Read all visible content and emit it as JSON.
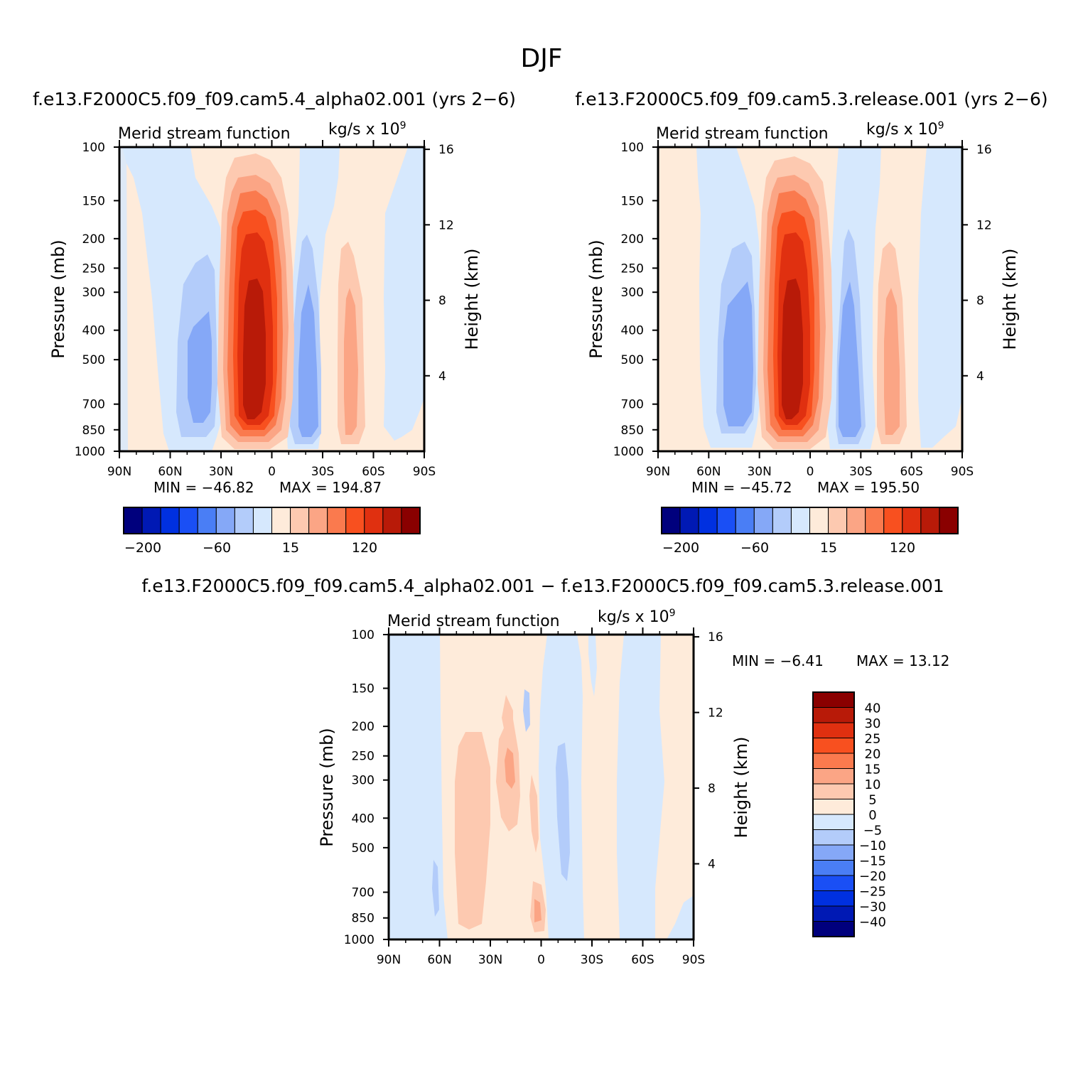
{
  "figure": {
    "title": "DJF",
    "left_case_title": "f.e13.F2000C5.f09_f09.cam5.4_alpha02.001  (yrs 2−6)",
    "right_case_title": "f.e13.F2000C5.f09_f09.cam5.3.release.001  (yrs 2−6)",
    "diff_title": "f.e13.F2000C5.f09_f09.cam5.4_alpha02.001  −  f.e13.F2000C5.f09_f09.cam5.3.release.001"
  },
  "colors": {
    "dark_navy": "#00007d",
    "navy": "#0019b4",
    "blue1": "#0030e0",
    "blue2": "#1a4ff5",
    "blue3": "#4a7ef5",
    "blue4": "#85a8f7",
    "blue5": "#b3ccfa",
    "blue6": "#d6e8fd",
    "peach1": "#feebda",
    "peach2": "#fdc9b0",
    "peach3": "#fba585",
    "orange1": "#fa7a4e",
    "orange2": "#f8501f",
    "red1": "#e03010",
    "red2": "#b81a08",
    "darkred": "#8a0000"
  },
  "chart_data": [
    {
      "type": "contour",
      "panel": "cam5.4_alpha02",
      "left_title": "Merid stream function",
      "units": "kg/s x 10",
      "units_exp": "9",
      "ylabel": "Pressure (mb)",
      "ylabel_right": "Height (km)",
      "y_ticks": [
        "100",
        "150",
        "200",
        "250",
        "300",
        "400",
        "500",
        "700",
        "850",
        "1000"
      ],
      "y_ticks_right": [
        "16",
        "12",
        "8",
        "4"
      ],
      "x_ticks": [
        "90N",
        "60N",
        "30N",
        "0",
        "30S",
        "60S",
        "90S"
      ],
      "stats": {
        "min_label": "MIN  =  −46.82",
        "max_label": "MAX  =  194.87",
        "min": -46.82,
        "max": 194.87
      },
      "colorbar": {
        "orientation": "horizontal",
        "labels": [
          "−200",
          "−60",
          "15",
          "120"
        ]
      }
    },
    {
      "type": "contour",
      "panel": "cam5.3_release",
      "left_title": "Merid stream function",
      "units": "kg/s x 10",
      "units_exp": "9",
      "ylabel": "Pressure (mb)",
      "ylabel_right": "Height (km)",
      "y_ticks": [
        "100",
        "150",
        "200",
        "250",
        "300",
        "400",
        "500",
        "700",
        "850",
        "1000"
      ],
      "y_ticks_right": [
        "16",
        "12",
        "8",
        "4"
      ],
      "x_ticks": [
        "90N",
        "60N",
        "30N",
        "0",
        "30S",
        "60S",
        "90S"
      ],
      "stats": {
        "min_label": "MIN  =  −45.72",
        "max_label": "MAX  =  195.50",
        "min": -45.72,
        "max": 195.5
      },
      "colorbar": {
        "orientation": "horizontal",
        "labels": [
          "−200",
          "−60",
          "15",
          "120"
        ]
      }
    },
    {
      "type": "contour",
      "panel": "difference",
      "left_title": "Merid stream function",
      "units": "kg/s x 10",
      "units_exp": "9",
      "ylabel": "Pressure (mb)",
      "ylabel_right": "Height (km)",
      "y_ticks": [
        "100",
        "150",
        "200",
        "250",
        "300",
        "400",
        "500",
        "700",
        "850",
        "1000"
      ],
      "y_ticks_right": [
        "16",
        "12",
        "8",
        "4"
      ],
      "x_ticks": [
        "90N",
        "60N",
        "30N",
        "0",
        "30S",
        "60S",
        "90S"
      ],
      "stats": {
        "min_label": "MIN  =   −6.41",
        "max_label": "MAX  =   13.12",
        "min": -6.41,
        "max": 13.12
      },
      "colorbar": {
        "orientation": "vertical",
        "labels": [
          "40",
          "30",
          "25",
          "20",
          "15",
          "10",
          "5",
          "0",
          "−5",
          "−10",
          "−15",
          "−20",
          "−25",
          "−30",
          "−40"
        ]
      }
    }
  ]
}
